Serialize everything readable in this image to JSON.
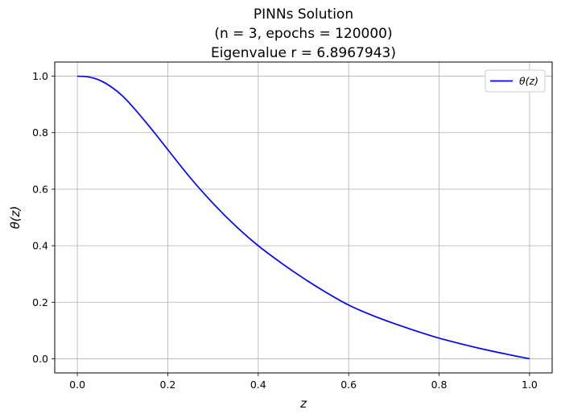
{
  "chart_data": {
    "type": "line",
    "title_lines": [
      "PINNs Solution",
      "(n = 3, epochs = 120000)",
      "Eigenvalue r = 6.8967943)"
    ],
    "xlabel": "z",
    "ylabel": "θ(z)",
    "xlim": [
      -0.05,
      1.05
    ],
    "ylim": [
      -0.05,
      1.05
    ],
    "xticks": [
      0.0,
      0.2,
      0.4,
      0.6,
      0.8,
      1.0
    ],
    "xtick_labels": [
      "0.0",
      "0.2",
      "0.4",
      "0.6",
      "0.8",
      "1.0"
    ],
    "yticks": [
      0.0,
      0.2,
      0.4,
      0.6,
      0.8,
      1.0
    ],
    "ytick_labels": [
      "0.0",
      "0.2",
      "0.4",
      "0.6",
      "0.8",
      "1.0"
    ],
    "grid": true,
    "legend_position": "top-right",
    "series": [
      {
        "name": "θ(z)",
        "color": "#0000ff",
        "x": [
          0.0,
          0.025,
          0.05,
          0.075,
          0.1,
          0.125,
          0.15,
          0.175,
          0.2,
          0.25,
          0.3,
          0.35,
          0.4,
          0.45,
          0.5,
          0.55,
          0.6,
          0.65,
          0.7,
          0.75,
          0.8,
          0.85,
          0.9,
          0.95,
          1.0
        ],
        "y": [
          1.0,
          0.997,
          0.985,
          0.962,
          0.93,
          0.887,
          0.84,
          0.791,
          0.74,
          0.64,
          0.55,
          0.47,
          0.4,
          0.34,
          0.285,
          0.235,
          0.19,
          0.155,
          0.125,
          0.098,
          0.073,
          0.052,
          0.033,
          0.016,
          0.0
        ]
      }
    ]
  }
}
